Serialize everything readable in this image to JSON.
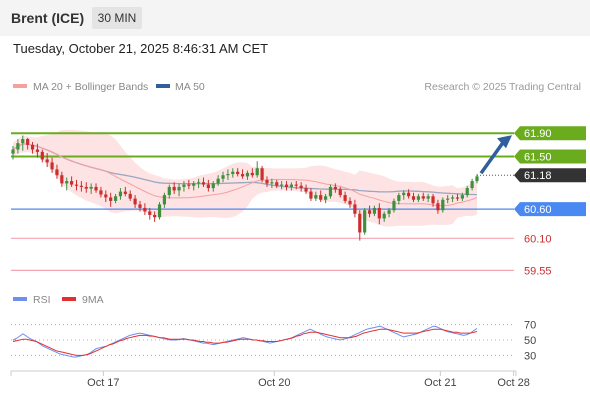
{
  "header": {
    "instrument": "Brent (ICE)",
    "timeframe": "30 MIN",
    "timestamp": "Tuesday, October 21, 2025 8:46:31 AM CET"
  },
  "legend": {
    "bollinger_label": "MA 20 + Bollinger Bands",
    "ma50_label": "MA 50",
    "source": "Research © 2025 Trading Central",
    "rsi_label": "RSI",
    "rsi_ma_label": "9MA"
  },
  "colors": {
    "candle_up": "#3f8f3f",
    "candle_down": "#cc2e2e",
    "ma20": "#f6a0a0",
    "bands_fill": "#fde3e3",
    "ma50": "#9aa7c2",
    "resistance": "#6aac1e",
    "pivot": "#4a89f2",
    "support": "#f4a6b0",
    "last_price": "#333333",
    "arrow": "#2f5f9e",
    "rsi": "#6c8ff0",
    "rsi_ma": "#e03030"
  },
  "chart_data": [
    {
      "type": "candlestick",
      "title": "Brent (ICE)",
      "timeframe": "30 MIN",
      "x_ticks": [
        "Oct 17",
        "Oct 20",
        "Oct 21",
        "Oct 28"
      ],
      "ylim": [
        59.3,
        62.4
      ],
      "levels": [
        {
          "value": 61.9,
          "label": "61.90",
          "kind": "resistance"
        },
        {
          "value": 61.5,
          "label": "61.50",
          "kind": "resistance"
        },
        {
          "value": 61.18,
          "label": "61.18",
          "kind": "last"
        },
        {
          "value": 60.6,
          "label": "60.60",
          "kind": "pivot"
        },
        {
          "value": 60.1,
          "label": "60.10",
          "kind": "support"
        },
        {
          "value": 59.55,
          "label": "59.55",
          "kind": "support"
        }
      ],
      "candles": [
        [
          0,
          61.55,
          61.68,
          61.45,
          61.62
        ],
        [
          1,
          61.62,
          61.8,
          61.55,
          61.73
        ],
        [
          2,
          61.73,
          61.86,
          61.6,
          61.8
        ],
        [
          3,
          61.8,
          61.82,
          61.62,
          61.7
        ],
        [
          4,
          61.7,
          61.75,
          61.55,
          61.62
        ],
        [
          5,
          61.62,
          61.72,
          61.48,
          61.58
        ],
        [
          6,
          61.58,
          61.62,
          61.4,
          61.45
        ],
        [
          7,
          61.45,
          61.56,
          61.32,
          61.4
        ],
        [
          8,
          61.4,
          61.48,
          61.22,
          61.28
        ],
        [
          9,
          61.28,
          61.36,
          61.12,
          61.18
        ],
        [
          10,
          61.18,
          61.24,
          60.98,
          61.04
        ],
        [
          11,
          61.04,
          61.14,
          60.92,
          61.08
        ],
        [
          12,
          61.08,
          61.16,
          60.98,
          61.02
        ],
        [
          13,
          61.02,
          61.1,
          60.92,
          61.0
        ],
        [
          14,
          61.0,
          61.08,
          60.9,
          60.98
        ],
        [
          15,
          60.98,
          61.06,
          60.88,
          60.95
        ],
        [
          16,
          60.95,
          61.04,
          60.86,
          60.98
        ],
        [
          17,
          60.98,
          61.04,
          60.88,
          60.92
        ],
        [
          18,
          60.92,
          60.98,
          60.8,
          60.85
        ],
        [
          19,
          60.85,
          60.92,
          60.72,
          60.8
        ],
        [
          20,
          60.8,
          60.88,
          60.64,
          60.74
        ],
        [
          21,
          60.74,
          60.86,
          60.7,
          60.82
        ],
        [
          22,
          60.82,
          60.96,
          60.76,
          60.9
        ],
        [
          23,
          60.9,
          60.98,
          60.82,
          60.86
        ],
        [
          24,
          60.86,
          60.92,
          60.74,
          60.78
        ],
        [
          25,
          60.78,
          60.84,
          60.62,
          60.68
        ],
        [
          26,
          60.68,
          60.74,
          60.56,
          60.62
        ],
        [
          27,
          60.62,
          60.7,
          60.5,
          60.56
        ],
        [
          28,
          60.56,
          60.62,
          60.42,
          60.5
        ],
        [
          29,
          60.5,
          60.56,
          60.38,
          60.46
        ],
        [
          30,
          60.46,
          60.72,
          60.42,
          60.68
        ],
        [
          31,
          60.68,
          60.88,
          60.62,
          60.84
        ],
        [
          32,
          60.84,
          61.02,
          60.78,
          60.98
        ],
        [
          33,
          60.98,
          61.06,
          60.86,
          60.92
        ],
        [
          34,
          60.92,
          61.04,
          60.82,
          60.98
        ],
        [
          35,
          60.98,
          61.08,
          60.9,
          61.02
        ],
        [
          36,
          61.02,
          61.1,
          60.94,
          61.0
        ],
        [
          37,
          61.0,
          61.08,
          60.92,
          61.04
        ],
        [
          38,
          61.04,
          61.12,
          60.96,
          61.06
        ],
        [
          39,
          61.06,
          61.14,
          60.98,
          61.02
        ],
        [
          40,
          61.02,
          61.1,
          60.9,
          60.96
        ],
        [
          41,
          60.96,
          61.08,
          60.9,
          61.04
        ],
        [
          42,
          61.04,
          61.18,
          61.0,
          61.12
        ],
        [
          43,
          61.12,
          61.24,
          61.06,
          61.18
        ],
        [
          44,
          61.18,
          61.28,
          61.1,
          61.2
        ],
        [
          45,
          61.2,
          61.3,
          61.14,
          61.24
        ],
        [
          46,
          61.24,
          61.3,
          61.16,
          61.2
        ],
        [
          47,
          61.2,
          61.28,
          61.12,
          61.16
        ],
        [
          48,
          61.16,
          61.26,
          61.1,
          61.22
        ],
        [
          49,
          61.22,
          61.3,
          61.14,
          61.18
        ],
        [
          50,
          61.18,
          61.42,
          61.14,
          61.3
        ],
        [
          51,
          61.3,
          61.34,
          61.06,
          61.1
        ],
        [
          52,
          61.1,
          61.16,
          60.98,
          61.04
        ],
        [
          53,
          61.04,
          61.12,
          60.96,
          61.06
        ],
        [
          54,
          61.06,
          61.1,
          60.96,
          61.0
        ],
        [
          55,
          61.0,
          61.08,
          60.94,
          61.02
        ],
        [
          56,
          61.02,
          61.08,
          60.92,
          60.98
        ],
        [
          57,
          60.98,
          61.06,
          60.92,
          61.02
        ],
        [
          58,
          61.02,
          61.08,
          60.94,
          61.0
        ],
        [
          59,
          61.0,
          61.06,
          60.9,
          60.96
        ],
        [
          60,
          60.96,
          61.02,
          60.86,
          60.9
        ],
        [
          61,
          60.9,
          60.96,
          60.74,
          60.78
        ],
        [
          62,
          60.78,
          60.9,
          60.74,
          60.84
        ],
        [
          63,
          60.84,
          60.92,
          60.72,
          60.76
        ],
        [
          64,
          60.76,
          60.86,
          60.7,
          60.82
        ],
        [
          65,
          60.82,
          61.02,
          60.78,
          60.98
        ],
        [
          66,
          60.98,
          61.04,
          60.88,
          60.94
        ],
        [
          67,
          60.94,
          60.98,
          60.8,
          60.84
        ],
        [
          68,
          60.84,
          60.9,
          60.7,
          60.74
        ],
        [
          69,
          60.74,
          60.8,
          60.62,
          60.68
        ],
        [
          70,
          60.68,
          60.76,
          60.46,
          60.52
        ],
        [
          71,
          60.52,
          60.58,
          60.06,
          60.2
        ],
        [
          72,
          60.2,
          60.62,
          60.16,
          60.58
        ],
        [
          73,
          60.58,
          60.66,
          60.46,
          60.52
        ],
        [
          74,
          60.52,
          60.66,
          60.48,
          60.62
        ],
        [
          75,
          60.62,
          60.7,
          60.34,
          60.44
        ],
        [
          76,
          60.44,
          60.56,
          60.38,
          60.52
        ],
        [
          77,
          60.52,
          60.62,
          60.46,
          60.58
        ],
        [
          78,
          60.58,
          60.78,
          60.54,
          60.74
        ],
        [
          79,
          60.74,
          60.88,
          60.68,
          60.84
        ],
        [
          80,
          60.84,
          60.92,
          60.76,
          60.88
        ],
        [
          81,
          60.88,
          60.94,
          60.78,
          60.82
        ],
        [
          82,
          60.82,
          60.88,
          60.72,
          60.76
        ],
        [
          83,
          60.76,
          60.86,
          60.72,
          60.82
        ],
        [
          84,
          60.82,
          60.88,
          60.74,
          60.78
        ],
        [
          85,
          60.78,
          60.86,
          60.72,
          60.82
        ],
        [
          86,
          60.82,
          60.86,
          60.64,
          60.7
        ],
        [
          87,
          60.7,
          60.76,
          60.52,
          60.58
        ],
        [
          88,
          60.58,
          60.8,
          60.54,
          60.76
        ],
        [
          89,
          60.76,
          60.84,
          60.7,
          60.78
        ],
        [
          90,
          60.78,
          60.84,
          60.72,
          60.8
        ],
        [
          91,
          60.8,
          60.86,
          60.74,
          60.78
        ],
        [
          92,
          60.78,
          60.88,
          60.74,
          60.84
        ],
        [
          93,
          60.84,
          61.0,
          60.8,
          60.96
        ],
        [
          94,
          60.96,
          61.12,
          60.92,
          61.08
        ],
        [
          95,
          61.08,
          61.2,
          61.04,
          61.16
        ]
      ],
      "series": [
        {
          "name": "MA 20 + Bollinger Bands",
          "color": "#f6a0a0"
        },
        {
          "name": "MA 50",
          "color": "#9aa7c2"
        }
      ]
    },
    {
      "type": "line",
      "title": "",
      "ylim": [
        15,
        85
      ],
      "y_ticks": [
        30,
        50,
        70
      ],
      "reference_lines": [
        30,
        50,
        70
      ],
      "x_ticks": [
        "Oct 17",
        "Oct 20",
        "Oct 21",
        "Oct 28"
      ],
      "series": [
        {
          "name": "RSI",
          "values": [
            50,
            52,
            55,
            58,
            55,
            52,
            50,
            48,
            45,
            42,
            40,
            38,
            36,
            34,
            32,
            31,
            30,
            29,
            28,
            28,
            29,
            30,
            31,
            33,
            36,
            39,
            40,
            41,
            42,
            44,
            46,
            48,
            50,
            52,
            54,
            56,
            57,
            58,
            59,
            58,
            57,
            56,
            55,
            54,
            53,
            52,
            51,
            50,
            50,
            50,
            51,
            52,
            51,
            50,
            49,
            48,
            47,
            46,
            46,
            45,
            44,
            45,
            46,
            47,
            48,
            49,
            50,
            51,
            52,
            53,
            52,
            51,
            50,
            50,
            49,
            48,
            47,
            46,
            47,
            48,
            49,
            50,
            51,
            52,
            54,
            56,
            58,
            60,
            62,
            64,
            62,
            60,
            58,
            56,
            54,
            53,
            52,
            51,
            50,
            51,
            52,
            54,
            56,
            58,
            60,
            62,
            64,
            65,
            66,
            67,
            68,
            66,
            64,
            62,
            60,
            58,
            56,
            54,
            55,
            56,
            57,
            58,
            60,
            62,
            64,
            66,
            68,
            67,
            65,
            63,
            61,
            60,
            59,
            58,
            57,
            56,
            57,
            59,
            62,
            65
          ]
        },
        {
          "name": "9MA",
          "values": [
            48,
            49,
            50,
            51,
            51,
            50,
            49,
            48,
            46,
            44,
            42,
            40,
            38,
            36,
            35,
            34,
            33,
            32,
            31,
            30,
            30,
            30,
            31,
            32,
            34,
            36,
            38,
            40,
            42,
            44,
            45,
            47,
            49,
            50,
            52,
            53,
            54,
            55,
            56,
            56,
            56,
            55,
            55,
            54,
            53,
            53,
            52,
            51,
            51,
            51,
            51,
            51,
            51,
            50,
            50,
            49,
            48,
            48,
            47,
            47,
            46,
            46,
            46,
            47,
            47,
            48,
            49,
            50,
            51,
            51,
            51,
            51,
            50,
            50,
            49,
            49,
            48,
            48,
            48,
            48,
            49,
            50,
            51,
            52,
            53,
            55,
            56,
            58,
            59,
            60,
            60,
            60,
            59,
            58,
            57,
            56,
            55,
            54,
            53,
            53,
            53,
            53,
            54,
            55,
            57,
            59,
            60,
            61,
            62,
            63,
            64,
            64,
            64,
            63,
            62,
            61,
            60,
            59,
            59,
            59,
            59,
            59,
            60,
            61,
            62,
            63,
            64,
            64,
            64,
            63,
            62,
            61,
            60,
            60,
            59,
            59,
            59,
            59,
            60,
            61
          ]
        }
      ]
    }
  ]
}
